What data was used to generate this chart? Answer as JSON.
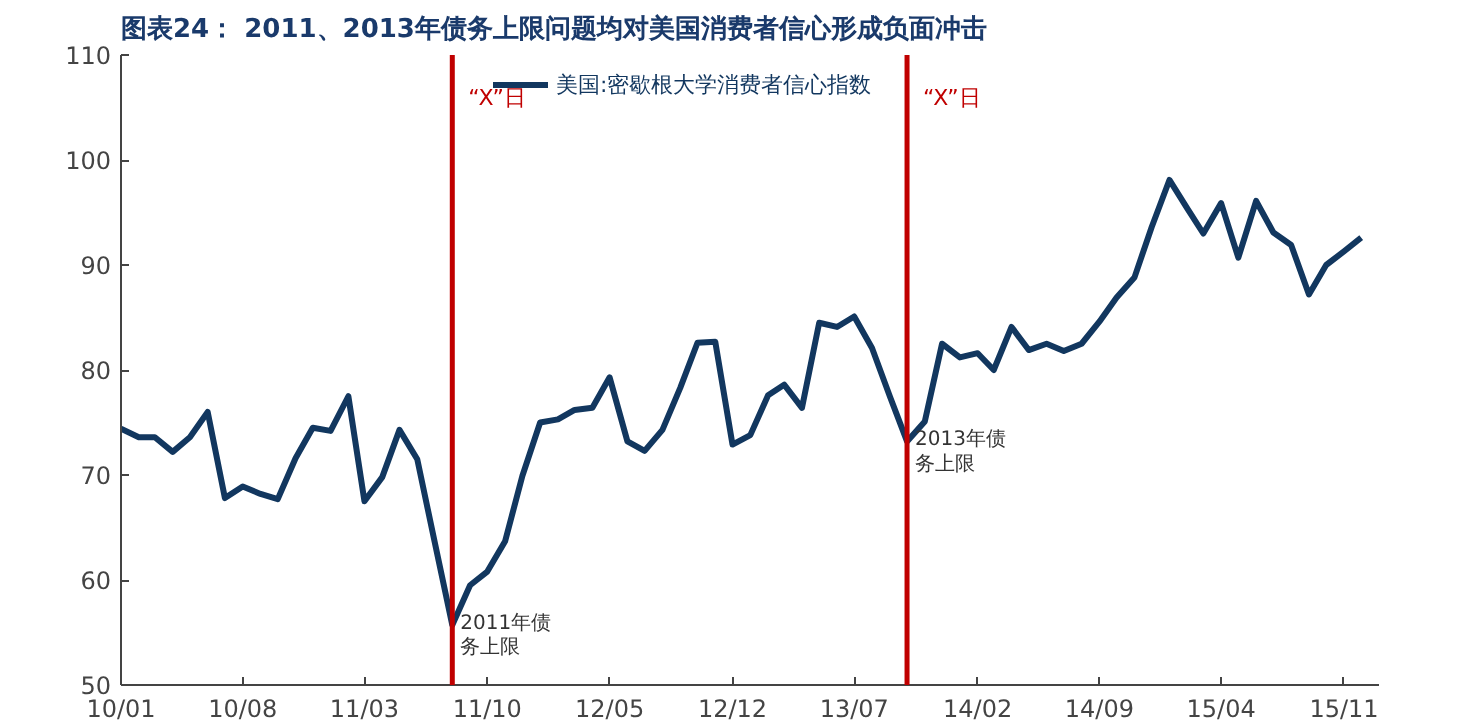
{
  "chart_data": {
    "type": "line",
    "title": "图表24：  2011、2013年债务上限问题均对美国消费者信心形成负面冲击",
    "x": [
      "2010-01",
      "2010-02",
      "2010-03",
      "2010-04",
      "2010-05",
      "2010-06",
      "2010-07",
      "2010-08",
      "2010-09",
      "2010-10",
      "2010-11",
      "2010-12",
      "2011-01",
      "2011-02",
      "2011-03",
      "2011-04",
      "2011-05",
      "2011-06",
      "2011-07",
      "2011-08",
      "2011-09",
      "2011-10",
      "2011-11",
      "2011-12",
      "2012-01",
      "2012-02",
      "2012-03",
      "2012-04",
      "2012-05",
      "2012-06",
      "2012-07",
      "2012-08",
      "2012-09",
      "2012-10",
      "2012-11",
      "2012-12",
      "2013-01",
      "2013-02",
      "2013-03",
      "2013-04",
      "2013-05",
      "2013-06",
      "2013-07",
      "2013-08",
      "2013-09",
      "2013-10",
      "2013-11",
      "2013-12",
      "2014-01",
      "2014-02",
      "2014-03",
      "2014-04",
      "2014-05",
      "2014-06",
      "2014-07",
      "2014-08",
      "2014-09",
      "2014-10",
      "2014-11",
      "2014-12",
      "2015-01",
      "2015-02",
      "2015-03",
      "2015-04",
      "2015-05",
      "2015-06",
      "2015-07",
      "2015-08",
      "2015-09",
      "2015-10",
      "2015-11",
      "2015-12"
    ],
    "series": [
      {
        "name": "美国:密歇根大学消费者信心指数",
        "color": "#12375f",
        "values": [
          74.4,
          73.6,
          73.6,
          72.2,
          73.6,
          76.0,
          67.8,
          68.9,
          68.2,
          67.7,
          71.6,
          74.5,
          74.2,
          77.5,
          67.5,
          69.8,
          74.3,
          71.5,
          63.7,
          55.7,
          59.5,
          60.8,
          63.7,
          69.9,
          75.0,
          75.3,
          76.2,
          76.4,
          79.3,
          73.2,
          72.3,
          74.3,
          78.3,
          82.6,
          82.7,
          72.9,
          73.8,
          77.6,
          78.6,
          76.4,
          84.5,
          84.1,
          85.1,
          82.1,
          77.5,
          73.2,
          75.1,
          82.5,
          81.2,
          81.6,
          80.0,
          84.1,
          81.9,
          82.5,
          81.8,
          82.5,
          84.6,
          86.9,
          88.8,
          93.6,
          98.1,
          95.4,
          93.0,
          95.9,
          90.7,
          96.1,
          93.1,
          91.9,
          87.2,
          90.0,
          91.3,
          92.6
        ]
      }
    ],
    "xlim": [
      "2010-01",
      "2016-01"
    ],
    "xticks": [
      {
        "value": "2010-01",
        "label": "10/01"
      },
      {
        "value": "2010-08",
        "label": "10/08"
      },
      {
        "value": "2011-03",
        "label": "11/03"
      },
      {
        "value": "2011-10",
        "label": "11/10"
      },
      {
        "value": "2012-05",
        "label": "12/05"
      },
      {
        "value": "2012-12",
        "label": "12/12"
      },
      {
        "value": "2013-07",
        "label": "13/07"
      },
      {
        "value": "2014-02",
        "label": "14/02"
      },
      {
        "value": "2014-09",
        "label": "14/09"
      },
      {
        "value": "2015-04",
        "label": "15/04"
      },
      {
        "value": "2015-11",
        "label": "15/11"
      }
    ],
    "ylim": [
      50,
      110
    ],
    "yticks": [
      50,
      60,
      70,
      80,
      90,
      100,
      110
    ],
    "ref_lines": [
      {
        "axis": "x",
        "value": "2011-08",
        "label": "“X”日",
        "color": "#c00000"
      },
      {
        "axis": "x",
        "value": "2013-10",
        "label": "“X”日",
        "color": "#c00000"
      }
    ],
    "annotations": [
      {
        "text": "2011年债务上限",
        "x": "2011-08",
        "y": 55.7
      },
      {
        "text": "2013年债务上限",
        "x": "2013-10",
        "y": 73.2
      }
    ],
    "grid": false,
    "legend": "top",
    "marker": "none",
    "line_style": "solid"
  }
}
